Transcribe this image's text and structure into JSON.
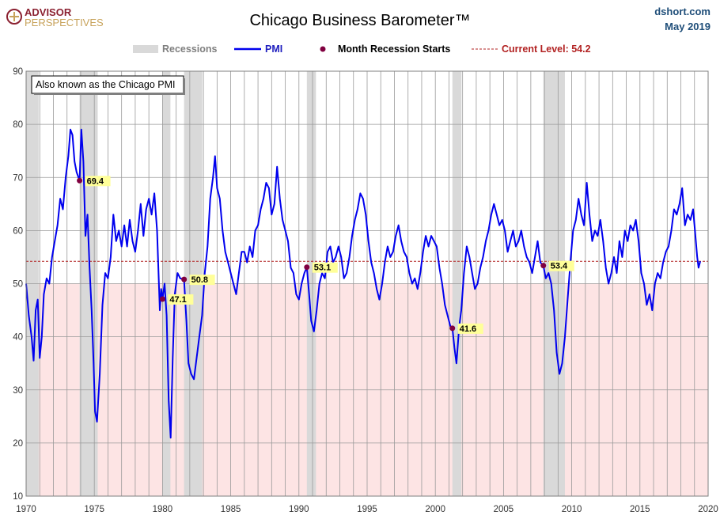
{
  "header": {
    "logo_top": "ADVISOR",
    "logo_bottom": "PERSPECTIVES",
    "site": "dshort.com",
    "date": "May 2019"
  },
  "chart_data": {
    "type": "line",
    "title": "Chicago Business Barometer™",
    "annotation": "Also known as the Chicago PMI",
    "xlabel": "",
    "ylabel": "",
    "xlim": [
      1970.0,
      2020.0
    ],
    "ylim": [
      10,
      90
    ],
    "x_ticks": [
      1970,
      1975,
      1980,
      1985,
      1990,
      1995,
      2000,
      2005,
      2010,
      2015,
      2020
    ],
    "y_ticks": [
      10,
      20,
      30,
      40,
      50,
      60,
      70,
      80,
      90
    ],
    "grid": true,
    "contraction_threshold": 50,
    "legend": {
      "placement": "top",
      "recessions_label": "Recessions",
      "pmi_label": "PMI",
      "starts_label": "Month Recession Starts",
      "current_label": "Current Level: 54.2"
    },
    "current_level": 54.2,
    "colors": {
      "pmi": "#0000ee",
      "recession": "#d9d9d9",
      "contraction": "#fde4e4",
      "current": "#b22222",
      "marker": "#800040",
      "label_bg": "#ffff99"
    },
    "recessions": [
      [
        1969.92,
        1970.92
      ],
      [
        1973.92,
        1975.25
      ],
      [
        1980.0,
        1980.58
      ],
      [
        1981.58,
        1982.92
      ],
      [
        1990.58,
        1991.25
      ],
      [
        2001.25,
        2001.92
      ],
      [
        2007.92,
        2009.5
      ]
    ],
    "recession_starts": [
      {
        "x": 1973.92,
        "y": 69.4,
        "label": "69.4"
      },
      {
        "x": 1980.0,
        "y": 47.1,
        "label": "47.1"
      },
      {
        "x": 1981.58,
        "y": 50.8,
        "label": "50.8"
      },
      {
        "x": 1990.58,
        "y": 53.1,
        "label": "53.1"
      },
      {
        "x": 2001.25,
        "y": 41.6,
        "label": "41.6"
      },
      {
        "x": 2007.92,
        "y": 53.4,
        "label": "53.4"
      }
    ],
    "series": [
      {
        "name": "PMI",
        "points": [
          [
            1970.0,
            50
          ],
          [
            1970.2,
            44
          ],
          [
            1970.4,
            40
          ],
          [
            1970.55,
            35.5
          ],
          [
            1970.7,
            45
          ],
          [
            1970.85,
            47
          ],
          [
            1971.0,
            36
          ],
          [
            1971.15,
            40
          ],
          [
            1971.3,
            48
          ],
          [
            1971.5,
            51
          ],
          [
            1971.7,
            50
          ],
          [
            1971.9,
            55
          ],
          [
            1972.1,
            58
          ],
          [
            1972.3,
            61
          ],
          [
            1972.5,
            66
          ],
          [
            1972.7,
            64
          ],
          [
            1972.9,
            70
          ],
          [
            1973.1,
            74
          ],
          [
            1973.25,
            79
          ],
          [
            1973.4,
            78
          ],
          [
            1973.55,
            73
          ],
          [
            1973.7,
            71
          ],
          [
            1973.92,
            69.4
          ],
          [
            1974.05,
            79
          ],
          [
            1974.2,
            73
          ],
          [
            1974.35,
            59
          ],
          [
            1974.5,
            63
          ],
          [
            1974.65,
            53
          ],
          [
            1974.8,
            45
          ],
          [
            1974.95,
            35
          ],
          [
            1975.05,
            26
          ],
          [
            1975.2,
            24
          ],
          [
            1975.4,
            33
          ],
          [
            1975.6,
            46
          ],
          [
            1975.8,
            52
          ],
          [
            1976.0,
            51
          ],
          [
            1976.2,
            55
          ],
          [
            1976.4,
            63
          ],
          [
            1976.6,
            58
          ],
          [
            1976.8,
            60
          ],
          [
            1977.0,
            57
          ],
          [
            1977.2,
            61
          ],
          [
            1977.4,
            57
          ],
          [
            1977.6,
            62
          ],
          [
            1977.8,
            58
          ],
          [
            1978.0,
            56
          ],
          [
            1978.2,
            60
          ],
          [
            1978.4,
            65
          ],
          [
            1978.6,
            59
          ],
          [
            1978.8,
            64
          ],
          [
            1979.0,
            66
          ],
          [
            1979.2,
            63
          ],
          [
            1979.4,
            67
          ],
          [
            1979.6,
            60
          ],
          [
            1979.8,
            45
          ],
          [
            1979.9,
            49
          ],
          [
            1980.0,
            47.1
          ],
          [
            1980.15,
            50
          ],
          [
            1980.3,
            44
          ],
          [
            1980.45,
            28
          ],
          [
            1980.6,
            21
          ],
          [
            1980.75,
            36
          ],
          [
            1980.9,
            48
          ],
          [
            1981.1,
            52
          ],
          [
            1981.3,
            51
          ],
          [
            1981.58,
            50.8
          ],
          [
            1981.75,
            43
          ],
          [
            1981.9,
            35
          ],
          [
            1982.1,
            33
          ],
          [
            1982.3,
            32
          ],
          [
            1982.5,
            36
          ],
          [
            1982.7,
            40
          ],
          [
            1982.9,
            44
          ],
          [
            1983.1,
            52
          ],
          [
            1983.3,
            57
          ],
          [
            1983.5,
            66
          ],
          [
            1983.7,
            70
          ],
          [
            1983.85,
            74
          ],
          [
            1984.0,
            68
          ],
          [
            1984.2,
            66
          ],
          [
            1984.4,
            60
          ],
          [
            1984.6,
            56
          ],
          [
            1984.8,
            54
          ],
          [
            1985.0,
            52
          ],
          [
            1985.2,
            50
          ],
          [
            1985.4,
            48
          ],
          [
            1985.6,
            52
          ],
          [
            1985.8,
            56
          ],
          [
            1986.0,
            56
          ],
          [
            1986.2,
            54
          ],
          [
            1986.4,
            57
          ],
          [
            1986.6,
            55
          ],
          [
            1986.8,
            60
          ],
          [
            1987.0,
            61
          ],
          [
            1987.2,
            64
          ],
          [
            1987.4,
            66
          ],
          [
            1987.6,
            69
          ],
          [
            1987.8,
            68
          ],
          [
            1988.0,
            63
          ],
          [
            1988.2,
            65
          ],
          [
            1988.4,
            72
          ],
          [
            1988.6,
            66
          ],
          [
            1988.8,
            62
          ],
          [
            1989.0,
            60
          ],
          [
            1989.2,
            58
          ],
          [
            1989.4,
            53
          ],
          [
            1989.6,
            52
          ],
          [
            1989.8,
            48
          ],
          [
            1990.0,
            47
          ],
          [
            1990.2,
            50
          ],
          [
            1990.4,
            52
          ],
          [
            1990.58,
            53.1
          ],
          [
            1990.75,
            48
          ],
          [
            1990.9,
            43
          ],
          [
            1991.1,
            41
          ],
          [
            1991.3,
            45
          ],
          [
            1991.5,
            50
          ],
          [
            1991.7,
            52
          ],
          [
            1991.9,
            51
          ],
          [
            1992.1,
            56
          ],
          [
            1992.3,
            57
          ],
          [
            1992.5,
            54
          ],
          [
            1992.7,
            55
          ],
          [
            1992.9,
            57
          ],
          [
            1993.1,
            55
          ],
          [
            1993.3,
            51
          ],
          [
            1993.5,
            52
          ],
          [
            1993.7,
            55
          ],
          [
            1993.9,
            59
          ],
          [
            1994.1,
            62
          ],
          [
            1994.3,
            64
          ],
          [
            1994.5,
            67
          ],
          [
            1994.7,
            66
          ],
          [
            1994.9,
            63
          ],
          [
            1995.1,
            58
          ],
          [
            1995.3,
            54
          ],
          [
            1995.5,
            52
          ],
          [
            1995.7,
            49
          ],
          [
            1995.9,
            47
          ],
          [
            1996.1,
            50
          ],
          [
            1996.3,
            54
          ],
          [
            1996.5,
            57
          ],
          [
            1996.7,
            55
          ],
          [
            1996.9,
            56
          ],
          [
            1997.1,
            59
          ],
          [
            1997.3,
            61
          ],
          [
            1997.5,
            58
          ],
          [
            1997.7,
            56
          ],
          [
            1997.9,
            55
          ],
          [
            1998.1,
            52
          ],
          [
            1998.3,
            50
          ],
          [
            1998.5,
            51
          ],
          [
            1998.7,
            49
          ],
          [
            1998.9,
            52
          ],
          [
            1999.1,
            56
          ],
          [
            1999.3,
            59
          ],
          [
            1999.5,
            57
          ],
          [
            1999.7,
            59
          ],
          [
            1999.9,
            58
          ],
          [
            2000.1,
            57
          ],
          [
            2000.3,
            53
          ],
          [
            2000.5,
            50
          ],
          [
            2000.7,
            46
          ],
          [
            2000.9,
            44
          ],
          [
            2001.1,
            42
          ],
          [
            2001.25,
            41.6
          ],
          [
            2001.4,
            38
          ],
          [
            2001.55,
            35
          ],
          [
            2001.75,
            42
          ],
          [
            2001.9,
            45
          ],
          [
            2002.1,
            52
          ],
          [
            2002.3,
            57
          ],
          [
            2002.5,
            55
          ],
          [
            2002.7,
            52
          ],
          [
            2002.9,
            49
          ],
          [
            2003.1,
            50
          ],
          [
            2003.3,
            53
          ],
          [
            2003.5,
            55
          ],
          [
            2003.7,
            58
          ],
          [
            2003.9,
            60
          ],
          [
            2004.1,
            63
          ],
          [
            2004.3,
            65
          ],
          [
            2004.5,
            63
          ],
          [
            2004.7,
            61
          ],
          [
            2004.9,
            62
          ],
          [
            2005.1,
            60
          ],
          [
            2005.3,
            56
          ],
          [
            2005.5,
            58
          ],
          [
            2005.7,
            60
          ],
          [
            2005.9,
            57
          ],
          [
            2006.1,
            58
          ],
          [
            2006.3,
            60
          ],
          [
            2006.5,
            57
          ],
          [
            2006.7,
            55
          ],
          [
            2006.9,
            54
          ],
          [
            2007.1,
            52
          ],
          [
            2007.3,
            55
          ],
          [
            2007.5,
            58
          ],
          [
            2007.7,
            54
          ],
          [
            2007.92,
            53.4
          ],
          [
            2008.1,
            51
          ],
          [
            2008.3,
            52
          ],
          [
            2008.5,
            50
          ],
          [
            2008.7,
            45
          ],
          [
            2008.9,
            37
          ],
          [
            2009.1,
            33
          ],
          [
            2009.3,
            35
          ],
          [
            2009.5,
            40
          ],
          [
            2009.7,
            47
          ],
          [
            2009.9,
            54
          ],
          [
            2010.1,
            60
          ],
          [
            2010.3,
            62
          ],
          [
            2010.5,
            66
          ],
          [
            2010.7,
            63
          ],
          [
            2010.9,
            61
          ],
          [
            2011.1,
            69
          ],
          [
            2011.3,
            63
          ],
          [
            2011.5,
            58
          ],
          [
            2011.7,
            60
          ],
          [
            2011.9,
            59
          ],
          [
            2012.1,
            62
          ],
          [
            2012.3,
            58
          ],
          [
            2012.5,
            53
          ],
          [
            2012.7,
            50
          ],
          [
            2012.9,
            52
          ],
          [
            2013.1,
            55
          ],
          [
            2013.3,
            52
          ],
          [
            2013.5,
            58
          ],
          [
            2013.7,
            55
          ],
          [
            2013.9,
            60
          ],
          [
            2014.1,
            58
          ],
          [
            2014.3,
            61
          ],
          [
            2014.5,
            60
          ],
          [
            2014.7,
            62
          ],
          [
            2014.9,
            58
          ],
          [
            2015.1,
            52
          ],
          [
            2015.3,
            50
          ],
          [
            2015.5,
            46
          ],
          [
            2015.7,
            48
          ],
          [
            2015.9,
            45
          ],
          [
            2016.1,
            50
          ],
          [
            2016.3,
            52
          ],
          [
            2016.5,
            51
          ],
          [
            2016.7,
            54
          ],
          [
            2016.9,
            56
          ],
          [
            2017.1,
            57
          ],
          [
            2017.3,
            60
          ],
          [
            2017.5,
            64
          ],
          [
            2017.7,
            63
          ],
          [
            2017.9,
            65
          ],
          [
            2018.1,
            68
          ],
          [
            2018.3,
            61
          ],
          [
            2018.5,
            63
          ],
          [
            2018.7,
            62
          ],
          [
            2018.9,
            64
          ],
          [
            2019.1,
            58
          ],
          [
            2019.2,
            55
          ],
          [
            2019.3,
            53
          ],
          [
            2019.42,
            54.2
          ]
        ]
      }
    ]
  }
}
